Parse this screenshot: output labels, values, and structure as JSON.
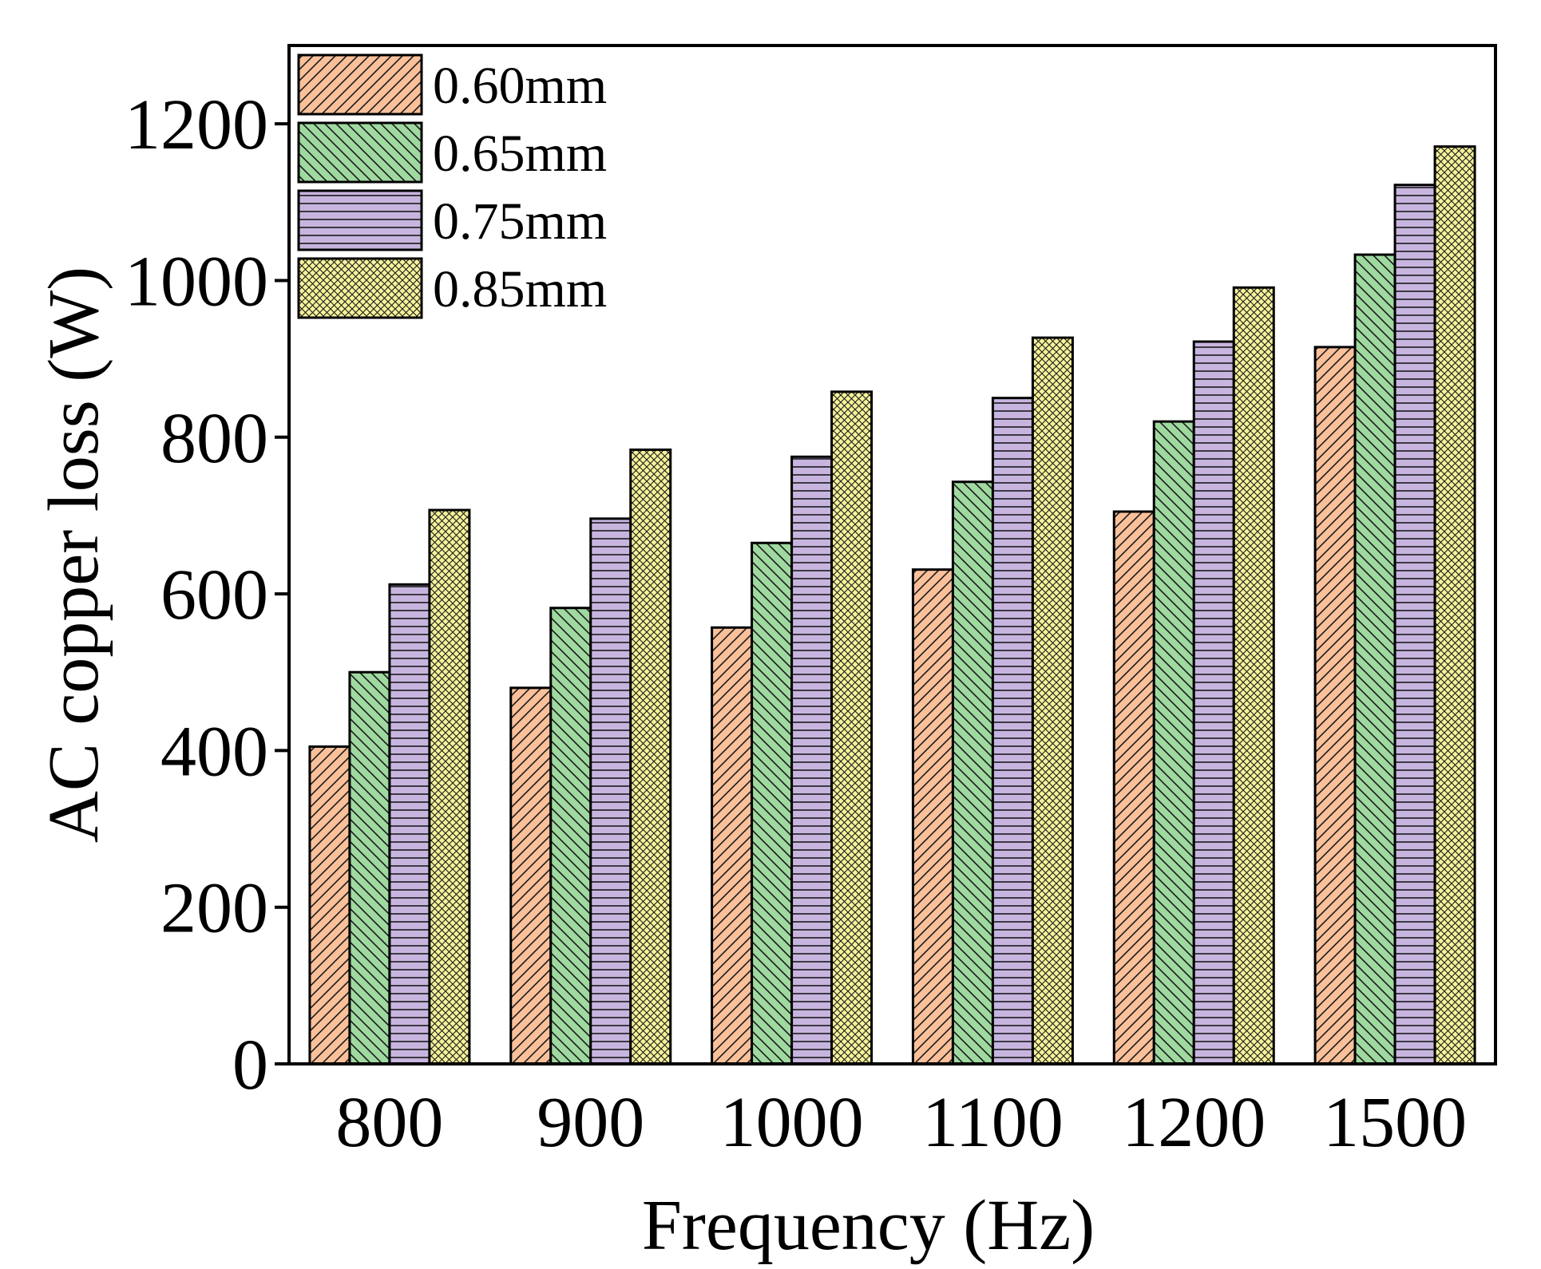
{
  "chart_data": {
    "type": "bar",
    "title": "",
    "xlabel": "Frequency (Hz)",
    "ylabel": "AC copper loss (W)",
    "categories": [
      "800",
      "900",
      "1000",
      "1100",
      "1200",
      "1500"
    ],
    "ylim": [
      0,
      1300
    ],
    "yticks": [
      "0",
      "200",
      "400",
      "600",
      "800",
      "1000",
      "1200"
    ],
    "grid": false,
    "legend_position": "top-left",
    "series": [
      {
        "name": "0.60mm",
        "color": "#f9c09a",
        "pattern": "diag-forward",
        "values": [
          405,
          480,
          557,
          631,
          705,
          915
        ]
      },
      {
        "name": "0.65mm",
        "color": "#9fd9a0",
        "pattern": "diag-back",
        "values": [
          500,
          582,
          665,
          743,
          820,
          1033
        ]
      },
      {
        "name": "0.75mm",
        "color": "#c7b5df",
        "pattern": "horizontal",
        "values": [
          612,
          696,
          775,
          850,
          922,
          1122
        ]
      },
      {
        "name": "0.85mm",
        "color": "#f5f29a",
        "pattern": "crosshatch",
        "values": [
          707,
          784,
          858,
          927,
          991,
          1171
        ]
      }
    ]
  }
}
